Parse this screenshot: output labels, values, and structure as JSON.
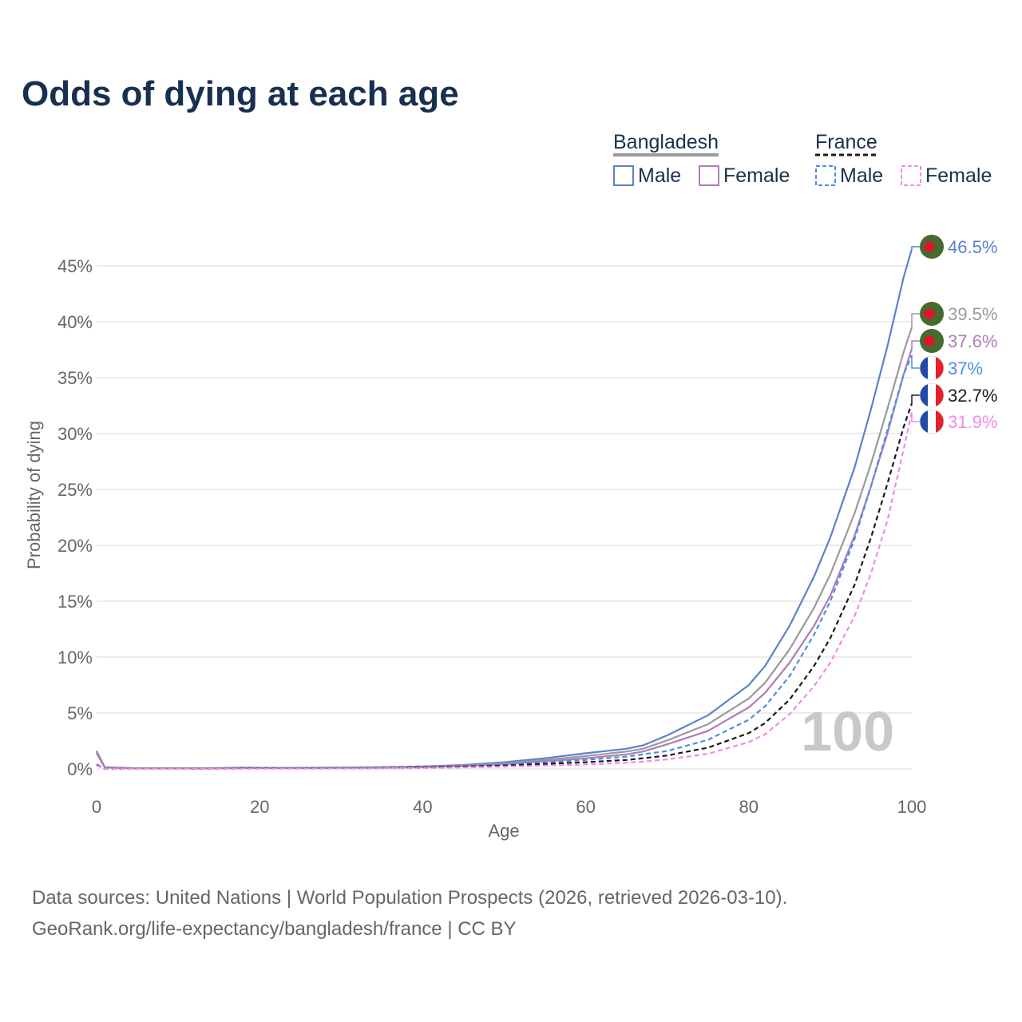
{
  "colors": {
    "bd_male": "#5b82c8",
    "bd_female": "#b07cb8",
    "bd_total": "#9a9a9a",
    "fr_male": "#4a8ee8",
    "fr_female": "#f48ae8",
    "fr_total": "#1a1a1a",
    "bd_flag_green": "#476a2e",
    "bd_flag_red": "#e5132a",
    "fr_flag_blue": "#1f4aa8",
    "fr_flag_red": "#e3202e"
  },
  "chart_data": {
    "type": "line",
    "title": "Odds of dying at each age",
    "xlabel": "Age",
    "ylabel": "Probability of dying",
    "xlim": [
      0,
      100
    ],
    "ylim": [
      0,
      45
    ],
    "xticks": [
      "0",
      "20",
      "40",
      "60",
      "80",
      "100"
    ],
    "yticks": [
      "0%",
      "5%",
      "10%",
      "15%",
      "20%",
      "25%",
      "30%",
      "35%",
      "40%",
      "45%"
    ],
    "highlight_age": "100",
    "legend": {
      "groups": [
        {
          "name": "Bangladesh",
          "items": [
            "Male",
            "Female"
          ]
        },
        {
          "name": "France",
          "items": [
            "Male",
            "Female"
          ]
        }
      ]
    },
    "x": [
      0,
      1,
      5,
      10,
      15,
      18,
      20,
      25,
      30,
      35,
      40,
      45,
      50,
      55,
      60,
      65,
      67,
      70,
      75,
      80,
      82,
      85,
      88,
      90,
      93,
      95,
      97,
      99,
      100
    ],
    "series": [
      {
        "name": "Bangladesh Male",
        "country": "Bangladesh",
        "sex": "Male",
        "style": "solid",
        "end_label": "46.5%",
        "values": [
          1.6,
          0.15,
          0.05,
          0.05,
          0.08,
          0.12,
          0.1,
          0.1,
          0.12,
          0.15,
          0.22,
          0.35,
          0.6,
          0.95,
          1.4,
          1.8,
          2.1,
          3.0,
          4.8,
          7.5,
          9.2,
          12.8,
          17.2,
          20.7,
          27.0,
          32.2,
          37.8,
          44.0,
          46.5
        ]
      },
      {
        "name": "Bangladesh Total",
        "country": "Bangladesh",
        "sex": "Total",
        "style": "solid",
        "end_label": "39.5%",
        "values": [
          1.5,
          0.13,
          0.05,
          0.05,
          0.07,
          0.1,
          0.09,
          0.09,
          0.11,
          0.13,
          0.18,
          0.3,
          0.5,
          0.8,
          1.15,
          1.55,
          1.8,
          2.55,
          4.0,
          6.3,
          7.7,
          10.7,
          14.4,
          17.4,
          22.9,
          27.3,
          32.2,
          37.3,
          39.5
        ]
      },
      {
        "name": "Bangladesh Female",
        "country": "Bangladesh",
        "sex": "Female",
        "style": "solid",
        "end_label": "37.6%",
        "values": [
          1.4,
          0.12,
          0.05,
          0.05,
          0.06,
          0.08,
          0.08,
          0.08,
          0.1,
          0.11,
          0.15,
          0.25,
          0.42,
          0.68,
          0.95,
          1.3,
          1.55,
          2.2,
          3.4,
          5.5,
          6.8,
          9.5,
          12.8,
          15.5,
          20.9,
          25.3,
          30.0,
          35.3,
          37.6
        ]
      },
      {
        "name": "France Male",
        "country": "France",
        "sex": "Male",
        "style": "dashed",
        "end_label": "37%",
        "values": [
          0.4,
          0.02,
          0.01,
          0.01,
          0.03,
          0.05,
          0.06,
          0.07,
          0.08,
          0.1,
          0.15,
          0.25,
          0.4,
          0.6,
          0.8,
          1.1,
          1.3,
          1.6,
          2.6,
          4.4,
          5.6,
          8.3,
          12.0,
          15.0,
          20.6,
          25.3,
          30.3,
          35.3,
          37.0
        ]
      },
      {
        "name": "France Total",
        "country": "France",
        "sex": "Total",
        "style": "dashed",
        "end_label": "32.7%",
        "values": [
          0.35,
          0.02,
          0.01,
          0.01,
          0.02,
          0.04,
          0.04,
          0.05,
          0.06,
          0.08,
          0.12,
          0.2,
          0.3,
          0.45,
          0.6,
          0.8,
          0.95,
          1.2,
          1.9,
          3.2,
          4.1,
          6.2,
          9.2,
          11.7,
          16.5,
          20.7,
          25.5,
          30.6,
          32.7
        ]
      },
      {
        "name": "France Female",
        "country": "France",
        "sex": "Female",
        "style": "dashed",
        "end_label": "31.9%",
        "values": [
          0.3,
          0.02,
          0.01,
          0.01,
          0.02,
          0.02,
          0.02,
          0.03,
          0.04,
          0.06,
          0.08,
          0.13,
          0.2,
          0.3,
          0.4,
          0.55,
          0.65,
          0.85,
          1.35,
          2.4,
          3.1,
          4.9,
          7.4,
          9.5,
          13.7,
          17.5,
          22.2,
          28.6,
          31.9
        ]
      }
    ]
  },
  "source": {
    "line1": "Data sources: United Nations | World Population Prospects (2026, retrieved 2026-03-10).",
    "line2": "GeoRank.org/life-expectancy/bangladesh/france | CC BY"
  }
}
